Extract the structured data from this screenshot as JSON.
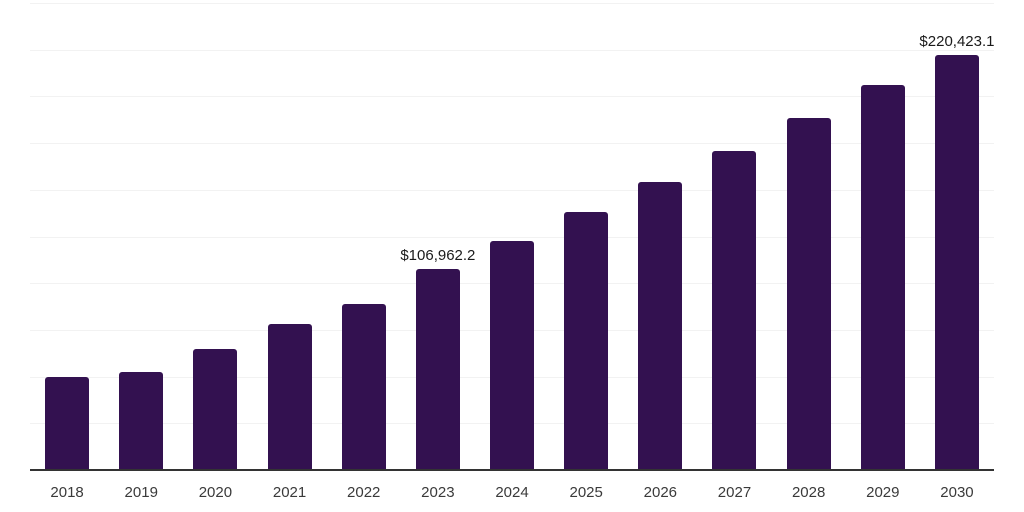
{
  "chart_data": {
    "type": "bar",
    "title": "",
    "xlabel": "",
    "ylabel": "",
    "categories": [
      "2018",
      "2019",
      "2020",
      "2021",
      "2022",
      "2023",
      "2024",
      "2025",
      "2026",
      "2027",
      "2028",
      "2029",
      "2030"
    ],
    "values": [
      49400,
      51800,
      64300,
      77500,
      88200,
      106962.2,
      121600,
      137000,
      153000,
      169400,
      186900,
      204400,
      220423.1
    ],
    "annotations": [
      {
        "index": 5,
        "text": "$106,962.2"
      },
      {
        "index": 12,
        "text": "$220,423.1"
      }
    ],
    "ylim": [
      0,
      248000
    ],
    "gridline_count": 10,
    "grid": "horizontal",
    "legend_position": "none",
    "bar_color": "#331150",
    "gridline_color": "#f2f2f2",
    "axis_line_color": "#333333",
    "value_label_color": "#1a1a1a",
    "tick_label_color": "#3a3a3a"
  }
}
